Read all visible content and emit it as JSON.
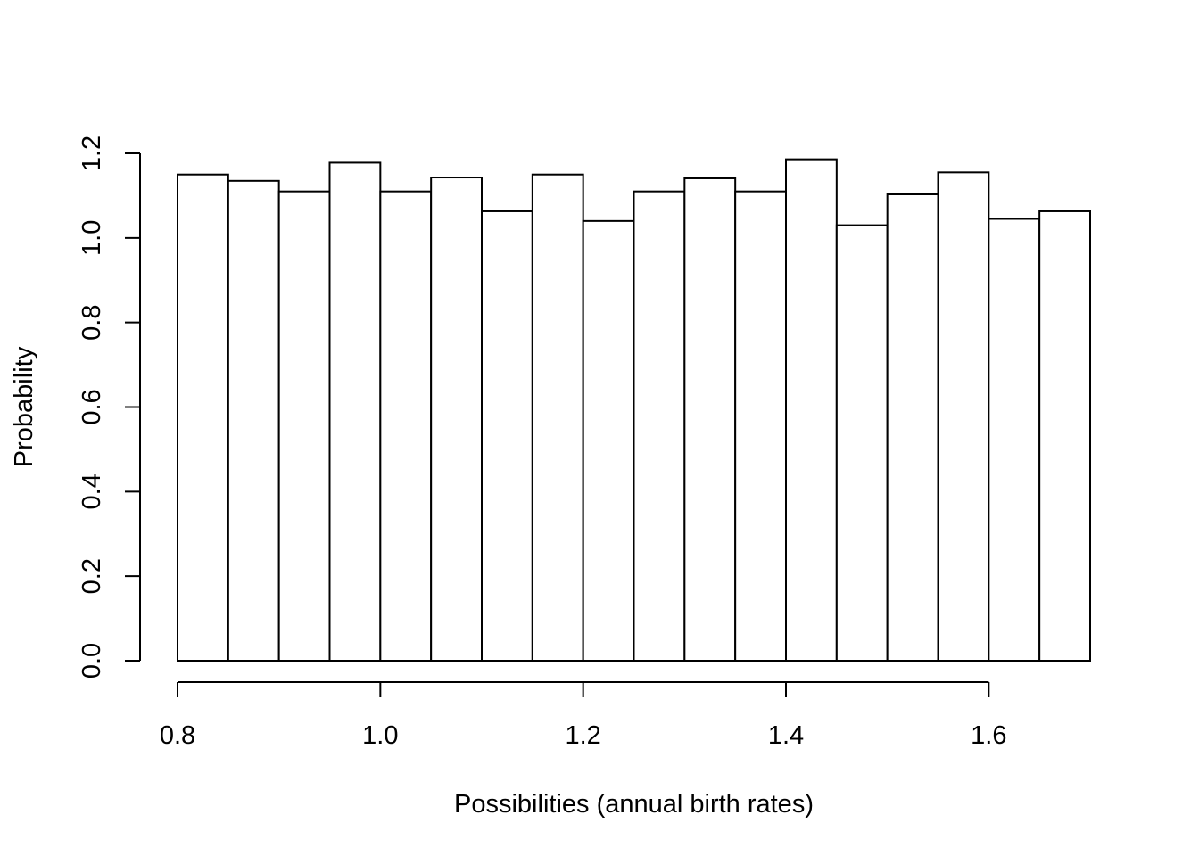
{
  "chart_data": {
    "type": "bar",
    "subtype": "histogram",
    "xlabel": "Possibilities (annual birth rates)",
    "ylabel": "Probability",
    "xlim": [
      0.8,
      1.7
    ],
    "ylim": [
      0.0,
      1.2
    ],
    "x_ticks": [
      "0.8",
      "1.0",
      "1.2",
      "1.4",
      "1.6"
    ],
    "y_ticks": [
      "0.0",
      "0.2",
      "0.4",
      "0.6",
      "0.8",
      "1.0",
      "1.2"
    ],
    "bin_width": 0.05,
    "bins": [
      {
        "start": 0.8,
        "end": 0.85,
        "value": 1.15
      },
      {
        "start": 0.85,
        "end": 0.9,
        "value": 1.135
      },
      {
        "start": 0.9,
        "end": 0.95,
        "value": 1.11
      },
      {
        "start": 0.95,
        "end": 1.0,
        "value": 1.178
      },
      {
        "start": 1.0,
        "end": 1.05,
        "value": 1.11
      },
      {
        "start": 1.05,
        "end": 1.1,
        "value": 1.143
      },
      {
        "start": 1.1,
        "end": 1.15,
        "value": 1.063
      },
      {
        "start": 1.15,
        "end": 1.2,
        "value": 1.15
      },
      {
        "start": 1.2,
        "end": 1.25,
        "value": 1.04
      },
      {
        "start": 1.25,
        "end": 1.3,
        "value": 1.11
      },
      {
        "start": 1.3,
        "end": 1.35,
        "value": 1.141
      },
      {
        "start": 1.35,
        "end": 1.4,
        "value": 1.11
      },
      {
        "start": 1.4,
        "end": 1.45,
        "value": 1.186
      },
      {
        "start": 1.45,
        "end": 1.5,
        "value": 1.03
      },
      {
        "start": 1.5,
        "end": 1.55,
        "value": 1.103
      },
      {
        "start": 1.55,
        "end": 1.6,
        "value": 1.155
      },
      {
        "start": 1.6,
        "end": 1.65,
        "value": 1.045
      },
      {
        "start": 1.65,
        "end": 1.7,
        "value": 1.063
      }
    ],
    "grid": false,
    "legend": "none",
    "colors": {
      "bar_fill": "#ffffff",
      "bar_stroke": "#000000"
    }
  }
}
